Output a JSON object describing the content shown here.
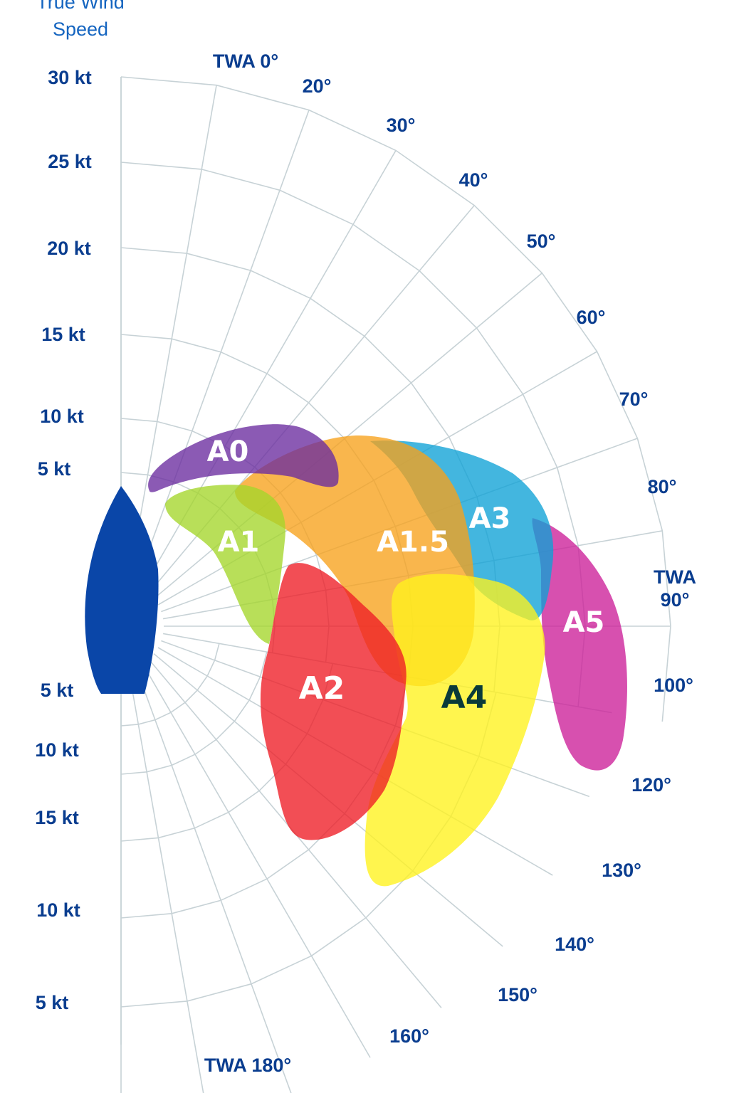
{
  "chart_data": {
    "type": "polar",
    "title_lines": [
      "True Wind",
      "Speed"
    ],
    "angle_labels": [
      {
        "angle": 0,
        "lines": [
          "TWA 0°"
        ]
      },
      {
        "angle": 20,
        "lines": [
          "20°"
        ]
      },
      {
        "angle": 30,
        "lines": [
          "30°"
        ]
      },
      {
        "angle": 40,
        "lines": [
          "40°"
        ]
      },
      {
        "angle": 50,
        "lines": [
          "50°"
        ]
      },
      {
        "angle": 60,
        "lines": [
          "60°"
        ]
      },
      {
        "angle": 70,
        "lines": [
          "70°"
        ]
      },
      {
        "angle": 80,
        "lines": [
          "80°"
        ]
      },
      {
        "angle": 90,
        "lines": [
          "TWA",
          "90°"
        ]
      },
      {
        "angle": 100,
        "lines": [
          "100°"
        ]
      },
      {
        "angle": 120,
        "lines": [
          "120°"
        ]
      },
      {
        "angle": 130,
        "lines": [
          "130°"
        ]
      },
      {
        "angle": 140,
        "lines": [
          "140°"
        ]
      },
      {
        "angle": 150,
        "lines": [
          "150°"
        ]
      },
      {
        "angle": 160,
        "lines": [
          "160°"
        ]
      },
      {
        "angle": 180,
        "lines": [
          "TWA 180°"
        ]
      }
    ],
    "upper_speed_labels": [
      "30 kt",
      "25 kt",
      "20 kt",
      "15 kt",
      "10 kt",
      "5 kt"
    ],
    "lower_speed_labels": [
      "5 kt",
      "10 kt",
      "15 kt",
      "10 kt",
      "5 kt"
    ],
    "sails": [
      {
        "name": "A0",
        "color": "#6a2c9f",
        "text_color": "#ffffff"
      },
      {
        "name": "A1",
        "color": "#a4d62a",
        "text_color": "#ffffff"
      },
      {
        "name": "A1.5",
        "color": "#f7a21b",
        "text_color": "#ffffff"
      },
      {
        "name": "A2",
        "color": "#ee1c25",
        "text_color": "#ffffff"
      },
      {
        "name": "A3",
        "color": "#0ea2d6",
        "text_color": "#ffffff"
      },
      {
        "name": "A4",
        "color": "#fff21c",
        "text_color": "#0a3a3a"
      },
      {
        "name": "A5",
        "color": "#cc1f99",
        "text_color": "#ffffff"
      }
    ],
    "colors": {
      "grid": "#c7d2d6",
      "boat": "#0a46a8",
      "labels": "#0a3d8f"
    }
  }
}
